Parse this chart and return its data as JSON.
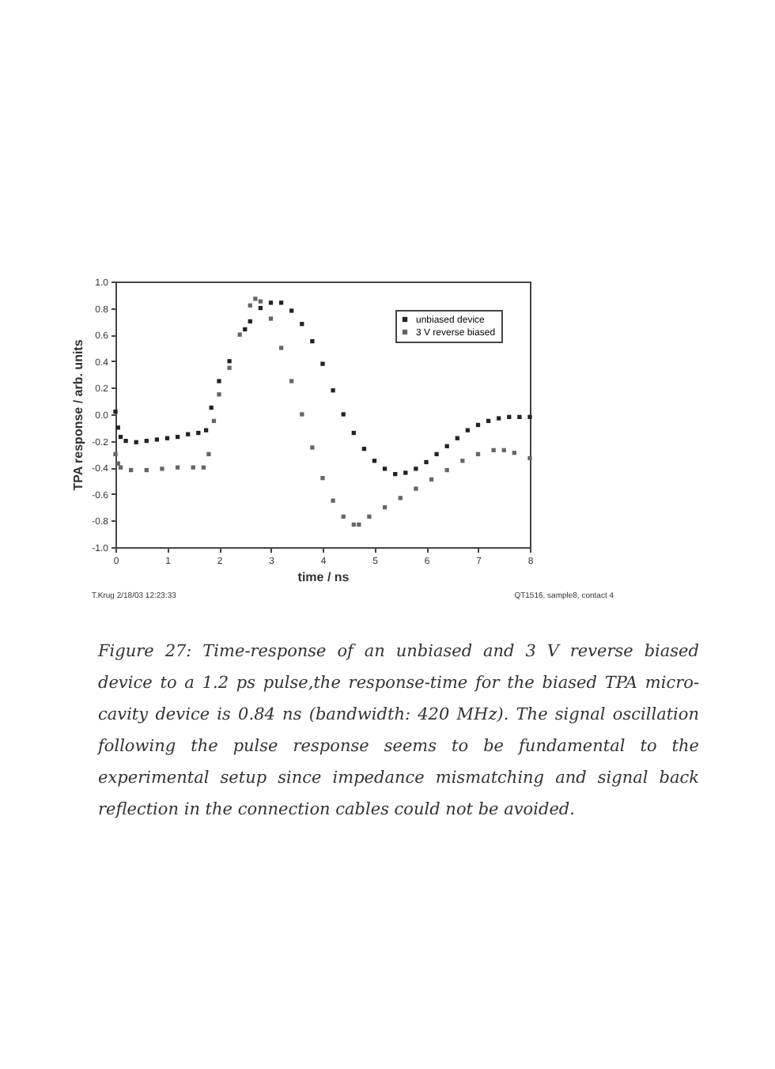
{
  "chart_data": {
    "type": "scatter",
    "xlabel": "time / ns",
    "ylabel": "TPA response / arb. units",
    "xlim": [
      0,
      8
    ],
    "ylim": [
      -1,
      1
    ],
    "xticks": [
      0,
      1,
      2,
      3,
      4,
      5,
      6,
      7,
      8
    ],
    "yticks": [
      {
        "value": -1,
        "label": "-1.0"
      },
      -0.8,
      -0.6,
      -0.4,
      -0.2,
      {
        "value": 0,
        "label": "0.0"
      },
      0.2,
      0.4,
      0.6,
      0.8,
      {
        "value": 1,
        "label": "1.0"
      }
    ],
    "grid": false,
    "legend": "top right",
    "marker": "square",
    "annotations": [
      "T.Krug 2/18/03 12:23:33",
      "QT1516, sample8, contact 4",
      "Figure 27: Time-response of an unbiased and 3 V reverse biased device to a 1.2 ps pulse,the response-time for the biased TPA micro-cavity device is 0.84 ns (bandwidth: 420 MHz). The signal oscillation following the pulse response seems to be fundamental to the experimental setup since impedance mismatching and signal back reflection in the connection cables could not be avoided."
    ],
    "series": [
      {
        "name": "unbiased device",
        "color": "#222222",
        "x": [
          0,
          0.05,
          0.1,
          0.2,
          0.4,
          0.6,
          0.8,
          1.0,
          1.2,
          1.4,
          1.6,
          1.75,
          1.85,
          2.0,
          2.2,
          2.5,
          2.6,
          2.8,
          3.0,
          3.2,
          3.4,
          3.6,
          3.8,
          4.0,
          4.2,
          4.4,
          4.6,
          4.8,
          5.0,
          5.2,
          5.4,
          5.6,
          5.8,
          6.0,
          6.2,
          6.4,
          6.6,
          6.8,
          7.0,
          7.2,
          7.4,
          7.6,
          7.8,
          8.0
        ],
        "values": [
          0.02,
          -0.1,
          -0.17,
          -0.2,
          -0.21,
          -0.2,
          -0.19,
          -0.18,
          -0.17,
          -0.15,
          -0.14,
          -0.12,
          0.05,
          0.25,
          0.4,
          0.64,
          0.7,
          0.8,
          0.84,
          0.84,
          0.78,
          0.68,
          0.55,
          0.38,
          0.18,
          0.0,
          -0.14,
          -0.26,
          -0.35,
          -0.41,
          -0.45,
          -0.44,
          -0.41,
          -0.36,
          -0.3,
          -0.24,
          -0.18,
          -0.12,
          -0.08,
          -0.05,
          -0.03,
          -0.02,
          -0.02,
          -0.02
        ]
      },
      {
        "name": "3 V reverse biased",
        "color": "#666666",
        "x": [
          0,
          0.05,
          0.1,
          0.3,
          0.6,
          0.9,
          1.2,
          1.5,
          1.7,
          1.8,
          1.9,
          2.0,
          2.2,
          2.4,
          2.6,
          2.7,
          2.8,
          3.0,
          3.2,
          3.4,
          3.6,
          3.8,
          4.0,
          4.2,
          4.4,
          4.6,
          4.7,
          4.9,
          5.2,
          5.5,
          5.8,
          6.1,
          6.4,
          6.7,
          7.0,
          7.3,
          7.5,
          7.7,
          8.0
        ],
        "values": [
          -0.3,
          -0.37,
          -0.4,
          -0.42,
          -0.42,
          -0.41,
          -0.4,
          -0.4,
          -0.4,
          -0.3,
          -0.05,
          0.15,
          0.35,
          0.6,
          0.82,
          0.87,
          0.85,
          0.72,
          0.5,
          0.25,
          0.0,
          -0.25,
          -0.48,
          -0.65,
          -0.77,
          -0.83,
          -0.83,
          -0.77,
          -0.7,
          -0.63,
          -0.56,
          -0.49,
          -0.42,
          -0.35,
          -0.3,
          -0.27,
          -0.27,
          -0.29,
          -0.33
        ]
      }
    ]
  }
}
